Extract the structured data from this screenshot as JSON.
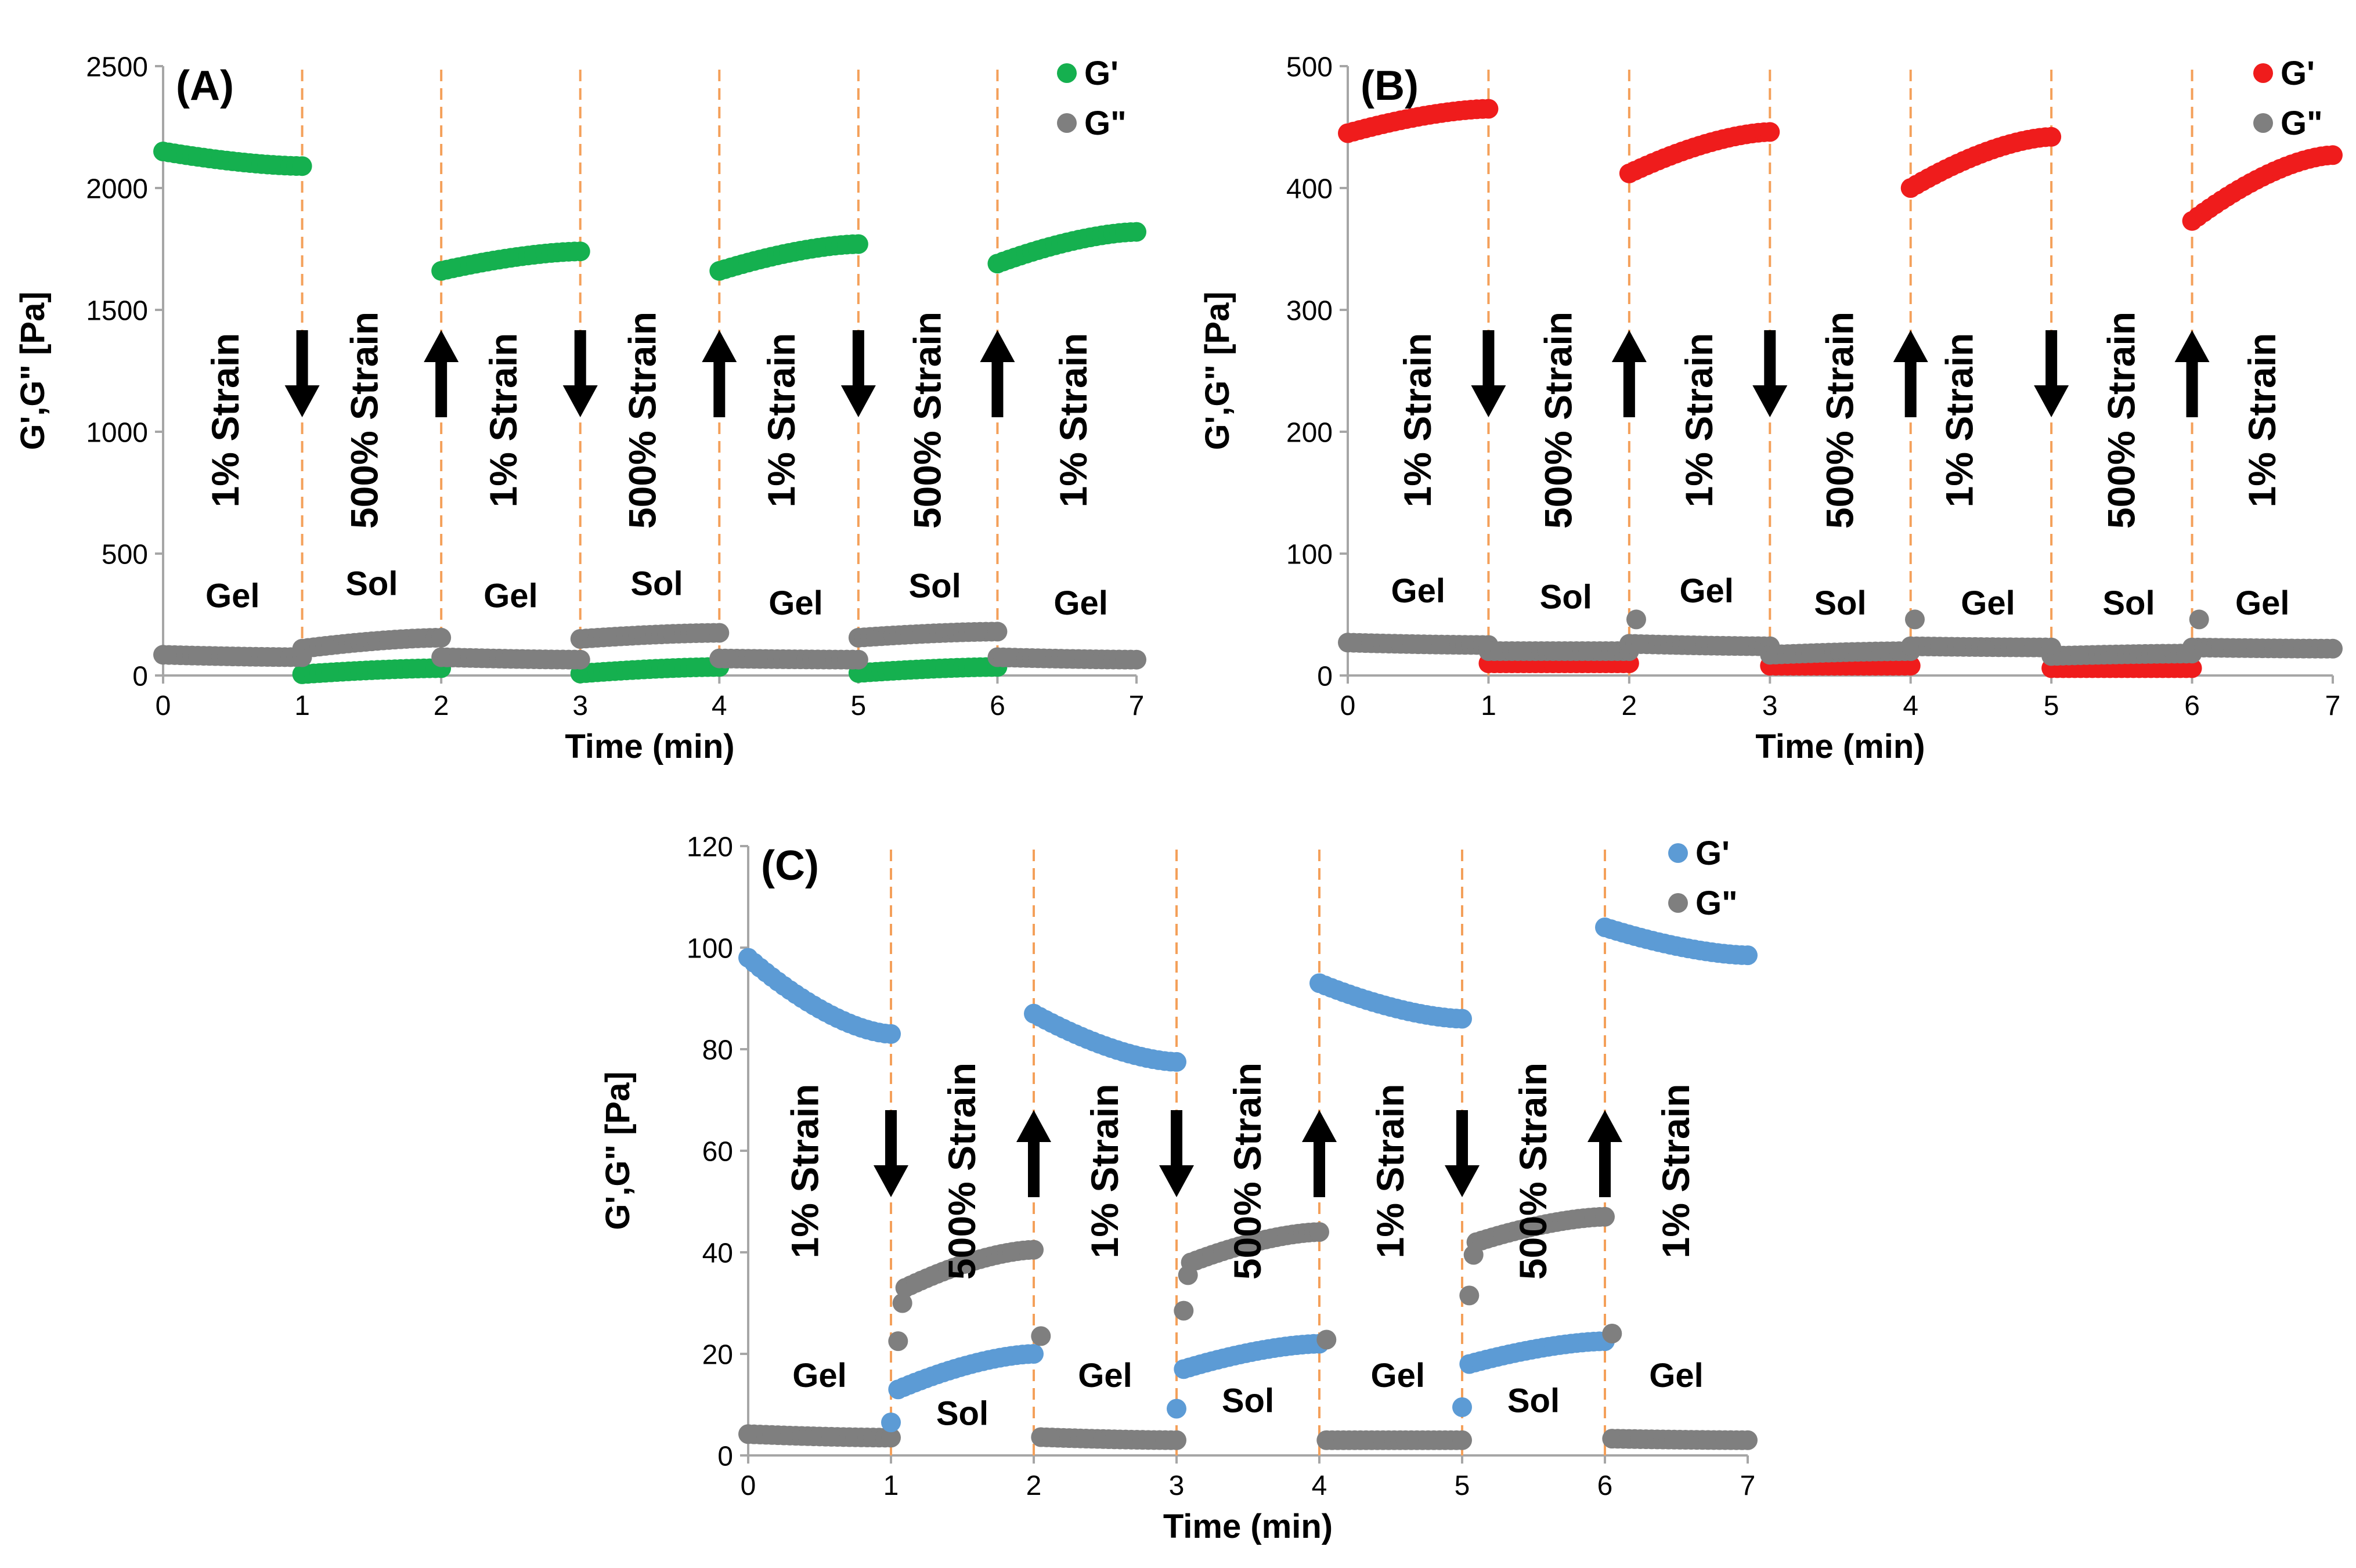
{
  "colors": {
    "green": "#15b04f",
    "red": "#ef1c1c",
    "blue": "#5c9bd5",
    "gray": "#7f7f7f",
    "divider": "#f4a05a",
    "axis": "#a6a6a6",
    "text": "#000000"
  },
  "chart_data": [
    {
      "id": "A",
      "type": "scatter",
      "title": "(A)",
      "xlabel": "Time (min)",
      "ylabel": "G',G\" [Pa]",
      "xlim": [
        0,
        7
      ],
      "ylim": [
        0,
        2500
      ],
      "xticks": [
        0,
        1,
        2,
        3,
        4,
        5,
        6,
        7
      ],
      "yticks": [
        0,
        500,
        1000,
        1500,
        2000,
        2500
      ],
      "dividers": [
        1,
        2,
        3,
        4,
        5,
        6
      ],
      "legend": [
        "G'",
        "G\""
      ],
      "series": [
        {
          "name": "G'",
          "color": "green",
          "segments": [
            {
              "t0": 0.0,
              "t1": 1.0,
              "v0": 2150,
              "v1": 2090,
              "v_at1": 2088
            },
            {
              "t0": 1.0,
              "t1": 2.0,
              "v0": 5,
              "v1": 30
            },
            {
              "t0": 2.0,
              "t1": 3.0,
              "v0": 1660,
              "v1": 1740
            },
            {
              "t0": 3.0,
              "t1": 4.0,
              "v0": 8,
              "v1": 35
            },
            {
              "t0": 4.0,
              "t1": 5.0,
              "v0": 1660,
              "v1": 1770
            },
            {
              "t0": 5.0,
              "t1": 6.0,
              "v0": 10,
              "v1": 35
            },
            {
              "t0": 6.0,
              "t1": 7.0,
              "v0": 1690,
              "v1": 1820
            }
          ]
        },
        {
          "name": "G\"",
          "color": "gray",
          "segments": [
            {
              "t0": 0.0,
              "t1": 1.0,
              "v0": 85,
              "v1": 75
            },
            {
              "t0": 1.0,
              "t1": 2.0,
              "v0": 110,
              "v1": 155
            },
            {
              "t0": 2.0,
              "t1": 3.0,
              "v0": 75,
              "v1": 65
            },
            {
              "t0": 3.0,
              "t1": 4.0,
              "v0": 150,
              "v1": 175
            },
            {
              "t0": 4.0,
              "t1": 5.0,
              "v0": 70,
              "v1": 65
            },
            {
              "t0": 5.0,
              "t1": 6.0,
              "v0": 155,
              "v1": 180
            },
            {
              "t0": 6.0,
              "t1": 7.0,
              "v0": 75,
              "v1": 65
            }
          ]
        }
      ],
      "strain_labels": [
        {
          "text": "1% Strain",
          "t": 0.45
        },
        {
          "text": "500% Strain",
          "t": 1.45
        },
        {
          "text": "1% Strain",
          "t": 2.45
        },
        {
          "text": "500% Strain",
          "t": 3.45
        },
        {
          "text": "1% Strain",
          "t": 4.45
        },
        {
          "text": "500% Strain",
          "t": 5.5
        },
        {
          "text": "1% Strain",
          "t": 6.55
        }
      ],
      "arrows": [
        {
          "t": 1,
          "dir": "down"
        },
        {
          "t": 2,
          "dir": "up"
        },
        {
          "t": 3,
          "dir": "down"
        },
        {
          "t": 4,
          "dir": "up"
        },
        {
          "t": 5,
          "dir": "down"
        },
        {
          "t": 6,
          "dir": "up"
        }
      ],
      "state_labels": [
        {
          "text": "Gel",
          "t": 0.5,
          "v": 280
        },
        {
          "text": "Sol",
          "t": 1.5,
          "v": 330
        },
        {
          "text": "Gel",
          "t": 2.5,
          "v": 280
        },
        {
          "text": "Sol",
          "t": 3.55,
          "v": 330
        },
        {
          "text": "Gel",
          "t": 4.55,
          "v": 250
        },
        {
          "text": "Sol",
          "t": 5.55,
          "v": 320
        },
        {
          "text": "Gel",
          "t": 6.6,
          "v": 250
        }
      ]
    },
    {
      "id": "B",
      "type": "scatter",
      "title": "(B)",
      "xlabel": "Time (min)",
      "ylabel": "G',G\" [Pa]",
      "xlim": [
        0,
        7
      ],
      "ylim": [
        0,
        500
      ],
      "xticks": [
        0,
        1,
        2,
        3,
        4,
        5,
        6,
        7
      ],
      "yticks": [
        0,
        100,
        200,
        300,
        400,
        500
      ],
      "dividers": [
        1,
        2,
        3,
        4,
        5,
        6
      ],
      "legend": [
        "G'",
        "G\""
      ],
      "series": [
        {
          "name": "G'",
          "color": "red",
          "segments": [
            {
              "t0": 0.0,
              "t1": 1.0,
              "v0": 445,
              "v1": 465
            },
            {
              "t0": 1.0,
              "t1": 2.0,
              "v0": 10,
              "v1": 10
            },
            {
              "t0": 2.0,
              "t1": 3.0,
              "v0": 412,
              "v1": 446
            },
            {
              "t0": 3.0,
              "t1": 4.0,
              "v0": 8,
              "v1": 8
            },
            {
              "t0": 4.0,
              "t1": 5.0,
              "v0": 400,
              "v1": 442
            },
            {
              "t0": 5.0,
              "t1": 6.0,
              "v0": 6,
              "v1": 6
            },
            {
              "t0": 6.0,
              "t1": 7.0,
              "v0": 373,
              "v1": 427
            }
          ]
        },
        {
          "name": "G\"",
          "color": "gray",
          "segments": [
            {
              "t0": 0.0,
              "t1": 1.0,
              "v0": 27,
              "v1": 25
            },
            {
              "t0": 1.0,
              "t1": 2.0,
              "v0": 20,
              "v1": 20
            },
            {
              "t0": 2.0,
              "t1": 3.0,
              "v0": 26,
              "v1": 24
            },
            {
              "t0": 3.0,
              "t1": 4.0,
              "v0": 17,
              "v1": 20
            },
            {
              "t0": 4.0,
              "t1": 5.0,
              "v0": 24,
              "v1": 23
            },
            {
              "t0": 5.0,
              "t1": 6.0,
              "v0": 16,
              "v1": 18
            },
            {
              "t0": 6.0,
              "t1": 7.0,
              "v0": 23,
              "v1": 22
            }
          ]
        }
      ],
      "extra_points": [
        {
          "series": 1,
          "t": 2.05,
          "v": 46
        },
        {
          "series": 1,
          "t": 4.03,
          "v": 46
        },
        {
          "series": 1,
          "t": 6.05,
          "v": 46
        }
      ],
      "strain_labels": [
        {
          "text": "1% Strain",
          "t": 0.5
        },
        {
          "text": "500% Strain",
          "t": 1.5
        },
        {
          "text": "1% Strain",
          "t": 2.5
        },
        {
          "text": "500% Strain",
          "t": 3.5
        },
        {
          "text": "1% Strain",
          "t": 4.35
        },
        {
          "text": "500% Strain",
          "t": 5.5
        },
        {
          "text": "1% Strain",
          "t": 6.5
        }
      ],
      "arrows": [
        {
          "t": 1,
          "dir": "down"
        },
        {
          "t": 2,
          "dir": "up"
        },
        {
          "t": 3,
          "dir": "down"
        },
        {
          "t": 4,
          "dir": "up"
        },
        {
          "t": 5,
          "dir": "down"
        },
        {
          "t": 6,
          "dir": "up"
        }
      ],
      "state_labels": [
        {
          "text": "Gel",
          "t": 0.5,
          "v": 60
        },
        {
          "text": "Sol",
          "t": 1.55,
          "v": 55
        },
        {
          "text": "Gel",
          "t": 2.55,
          "v": 60
        },
        {
          "text": "Sol",
          "t": 3.5,
          "v": 50
        },
        {
          "text": "Gel",
          "t": 4.55,
          "v": 50
        },
        {
          "text": "Sol",
          "t": 5.55,
          "v": 50
        },
        {
          "text": "Gel",
          "t": 6.5,
          "v": 50
        }
      ]
    },
    {
      "id": "C",
      "type": "scatter",
      "title": "(C)",
      "xlabel": "Time (min)",
      "ylabel": "G',G\" [Pa]",
      "xlim": [
        0,
        7
      ],
      "ylim": [
        0,
        120
      ],
      "xticks": [
        0,
        1,
        2,
        3,
        4,
        5,
        6,
        7
      ],
      "yticks": [
        0,
        20,
        40,
        60,
        80,
        100,
        120
      ],
      "dividers": [
        1,
        2,
        3,
        4,
        5,
        6
      ],
      "legend": [
        "G'",
        "G\""
      ],
      "series": [
        {
          "name": "G'",
          "color": "blue",
          "segments": [
            {
              "t0": 0.0,
              "t1": 1.0,
              "v0": 98,
              "v1": 83
            },
            {
              "t0": 1.05,
              "t1": 2.0,
              "v0": 13,
              "v1": 20
            },
            {
              "t0": 2.0,
              "t1": 3.0,
              "v0": 87,
              "v1": 77.5
            },
            {
              "t0": 3.05,
              "t1": 4.0,
              "v0": 17,
              "v1": 22
            },
            {
              "t0": 4.0,
              "t1": 5.0,
              "v0": 93,
              "v1": 86
            },
            {
              "t0": 5.05,
              "t1": 6.0,
              "v0": 18,
              "v1": 22.5
            },
            {
              "t0": 6.0,
              "t1": 7.0,
              "v0": 104,
              "v1": 98.5
            }
          ]
        },
        {
          "name": "G\"",
          "color": "gray",
          "segments": [
            {
              "t0": 0.0,
              "t1": 1.0,
              "v0": 4.2,
              "v1": 3.5
            },
            {
              "t0": 1.1,
              "t1": 2.0,
              "v0": 33,
              "v1": 40.5
            },
            {
              "t0": 2.05,
              "t1": 3.0,
              "v0": 3.6,
              "v1": 3
            },
            {
              "t0": 3.1,
              "t1": 4.0,
              "v0": 38,
              "v1": 44
            },
            {
              "t0": 4.05,
              "t1": 5.0,
              "v0": 3,
              "v1": 3
            },
            {
              "t0": 5.1,
              "t1": 6.0,
              "v0": 42,
              "v1": 47
            },
            {
              "t0": 6.05,
              "t1": 7.0,
              "v0": 3.3,
              "v1": 3
            }
          ]
        }
      ],
      "extra_points": [
        {
          "series": 0,
          "t": 1.0,
          "v": 6.5
        },
        {
          "series": 0,
          "t": 3.0,
          "v": 9.2
        },
        {
          "series": 0,
          "t": 5.0,
          "v": 9.5
        },
        {
          "series": 1,
          "t": 1.05,
          "v": 22.5
        },
        {
          "series": 1,
          "t": 1.08,
          "v": 30
        },
        {
          "series": 1,
          "t": 2.05,
          "v": 23.5
        },
        {
          "series": 1,
          "t": 3.05,
          "v": 28.5
        },
        {
          "series": 1,
          "t": 3.08,
          "v": 35.5
        },
        {
          "series": 1,
          "t": 4.05,
          "v": 22.8
        },
        {
          "series": 1,
          "t": 5.05,
          "v": 31.5
        },
        {
          "series": 1,
          "t": 5.08,
          "v": 39.5
        },
        {
          "series": 1,
          "t": 6.05,
          "v": 24
        }
      ],
      "strain_labels": [
        {
          "text": "1% Strain",
          "t": 0.4
        },
        {
          "text": "500% Strain",
          "t": 1.5
        },
        {
          "text": "1% Strain",
          "t": 2.5
        },
        {
          "text": "500% Strain",
          "t": 3.5
        },
        {
          "text": "1% Strain",
          "t": 4.5
        },
        {
          "text": "500% Strain",
          "t": 5.5
        },
        {
          "text": "1% Strain",
          "t": 6.5
        }
      ],
      "arrows": [
        {
          "t": 1,
          "dir": "down"
        },
        {
          "t": 2,
          "dir": "up"
        },
        {
          "t": 3,
          "dir": "down"
        },
        {
          "t": 4,
          "dir": "up"
        },
        {
          "t": 5,
          "dir": "down"
        },
        {
          "t": 6,
          "dir": "up"
        }
      ],
      "state_labels": [
        {
          "text": "Gel",
          "t": 0.5,
          "v": 13.5
        },
        {
          "text": "Sol",
          "t": 1.5,
          "v": 6
        },
        {
          "text": "Gel",
          "t": 2.5,
          "v": 13.5
        },
        {
          "text": "Sol",
          "t": 3.5,
          "v": 8.5
        },
        {
          "text": "Gel",
          "t": 4.55,
          "v": 13.5
        },
        {
          "text": "Sol",
          "t": 5.5,
          "v": 8.5
        },
        {
          "text": "Gel",
          "t": 6.5,
          "v": 13.5
        }
      ]
    }
  ]
}
